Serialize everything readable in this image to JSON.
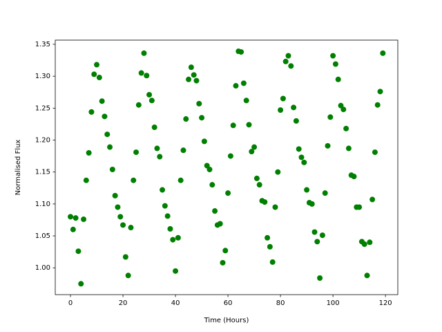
{
  "chart_data": {
    "type": "scatter",
    "xlabel": "Time (Hours)",
    "ylabel": "Normalised Flux",
    "color": "#008000",
    "x": [
      0,
      1,
      2,
      3,
      4,
      5,
      6,
      7,
      8,
      9,
      10,
      11,
      12,
      13,
      14,
      15,
      16,
      17,
      18,
      19,
      20,
      21,
      22,
      23,
      24,
      25,
      26,
      27,
      28,
      29,
      30,
      31,
      32,
      33,
      34,
      35,
      36,
      37,
      38,
      39,
      40,
      41,
      42,
      43,
      44,
      45,
      46,
      47,
      48,
      49,
      50,
      51,
      52,
      53,
      54,
      55,
      56,
      57,
      58,
      59,
      60,
      61,
      62,
      63,
      64,
      65,
      66,
      67,
      68,
      69,
      70,
      71,
      72,
      73,
      74,
      75,
      76,
      77,
      78,
      79,
      80,
      81,
      82,
      83,
      84,
      85,
      86,
      87,
      88,
      89,
      90,
      91,
      92,
      93,
      94,
      95,
      96,
      97,
      98,
      99,
      100,
      101,
      102,
      103,
      104,
      105,
      106,
      107,
      108,
      109,
      110,
      111,
      112,
      113,
      114,
      115,
      116,
      117,
      118,
      119
    ],
    "values": [
      1.08,
      1.06,
      1.078,
      1.026,
      0.975,
      1.076,
      1.137,
      1.18,
      1.244,
      1.303,
      1.318,
      1.298,
      1.261,
      1.237,
      1.209,
      1.189,
      1.154,
      1.113,
      1.095,
      1.08,
      1.067,
      1.017,
      0.988,
      1.063,
      1.137,
      1.181,
      1.255,
      1.305,
      1.336,
      1.301,
      1.271,
      1.262,
      1.22,
      1.187,
      1.174,
      1.122,
      1.097,
      1.081,
      1.061,
      1.044,
      0.995,
      1.047,
      1.137,
      1.184,
      1.233,
      1.295,
      1.314,
      1.302,
      1.293,
      1.257,
      1.235,
      1.198,
      1.16,
      1.154,
      1.13,
      1.089,
      1.067,
      1.069,
      1.008,
      1.027,
      1.117,
      1.175,
      1.223,
      1.285,
      1.339,
      1.338,
      1.289,
      1.262,
      1.224,
      1.182,
      1.189,
      1.14,
      1.13,
      1.105,
      1.103,
      1.047,
      1.033,
      1.009,
      1.095,
      1.15,
      1.247,
      1.265,
      1.323,
      1.332,
      1.316,
      1.251,
      1.23,
      1.186,
      1.173,
      1.165,
      1.122,
      1.102,
      1.1,
      1.056,
      1.041,
      0.984,
      1.051,
      1.117,
      1.191,
      1.236,
      1.332,
      1.319,
      1.295,
      1.254,
      1.248,
      1.218,
      1.187,
      1.145,
      1.143,
      1.095,
      1.095,
      1.041,
      1.037,
      0.988,
      1.04,
      1.107,
      1.181,
      1.255,
      1.276,
      1.336
    ],
    "xlim": [
      -5.8,
      124.7
    ],
    "ylim": [
      0.958,
      1.3565
    ],
    "xticks": [
      0,
      20,
      40,
      60,
      80,
      100,
      120
    ],
    "yticks": [
      {
        "value": 1.0,
        "label": "1.00"
      },
      1.05,
      {
        "value": 1.1,
        "label": "1.10"
      },
      1.15,
      {
        "value": 1.2,
        "label": "1.20"
      },
      1.25,
      {
        "value": 1.3,
        "label": "1.30"
      },
      1.35
    ],
    "grid": false
  }
}
